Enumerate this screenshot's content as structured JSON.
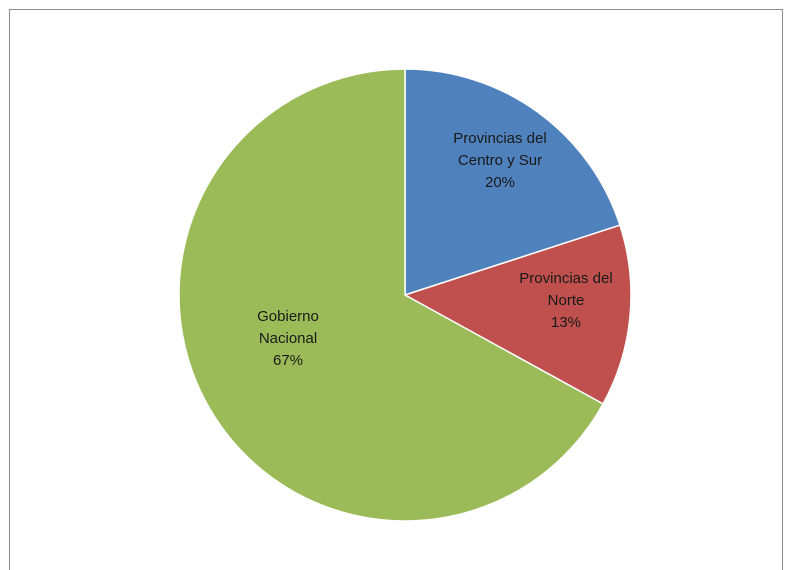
{
  "chart_data": {
    "type": "pie",
    "title": "",
    "legend": "none",
    "start_angle_deg": 0,
    "direction": "clockwise",
    "slices": [
      {
        "category": "Provincias del Centro y Sur",
        "value": 20,
        "color": "#4f81bd",
        "label_lines": [
          "Provincias del",
          "Centro y Sur",
          "20%"
        ]
      },
      {
        "category": "Provincias del Norte",
        "value": 13,
        "color": "#c0504d",
        "label_lines": [
          "Provincias del",
          "Norte",
          "13%"
        ]
      },
      {
        "category": "Gobierno Nacional",
        "value": 67,
        "color": "#9bbb59",
        "label_lines": [
          "Gobierno",
          "Nacional",
          "67%"
        ]
      }
    ]
  }
}
